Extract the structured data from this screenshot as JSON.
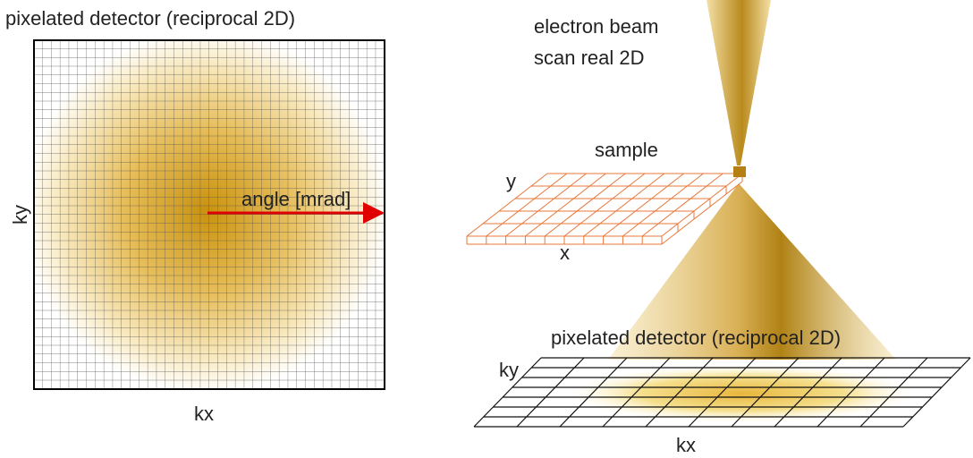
{
  "left_panel": {
    "title": "pixelated detector (reciprocal 2D)",
    "y_label": "ky",
    "x_label": "kx",
    "arrow_label": "angle [mrad]"
  },
  "right_panel": {
    "beam_label": [
      "electron beam",
      "scan real 2D"
    ],
    "sample_label": "sample",
    "sample_y_label": "y",
    "sample_x_label": "x",
    "detector_label": "pixelated detector (reciprocal 2D)",
    "detector_y_label": "ky",
    "detector_x_label": "kx"
  }
}
